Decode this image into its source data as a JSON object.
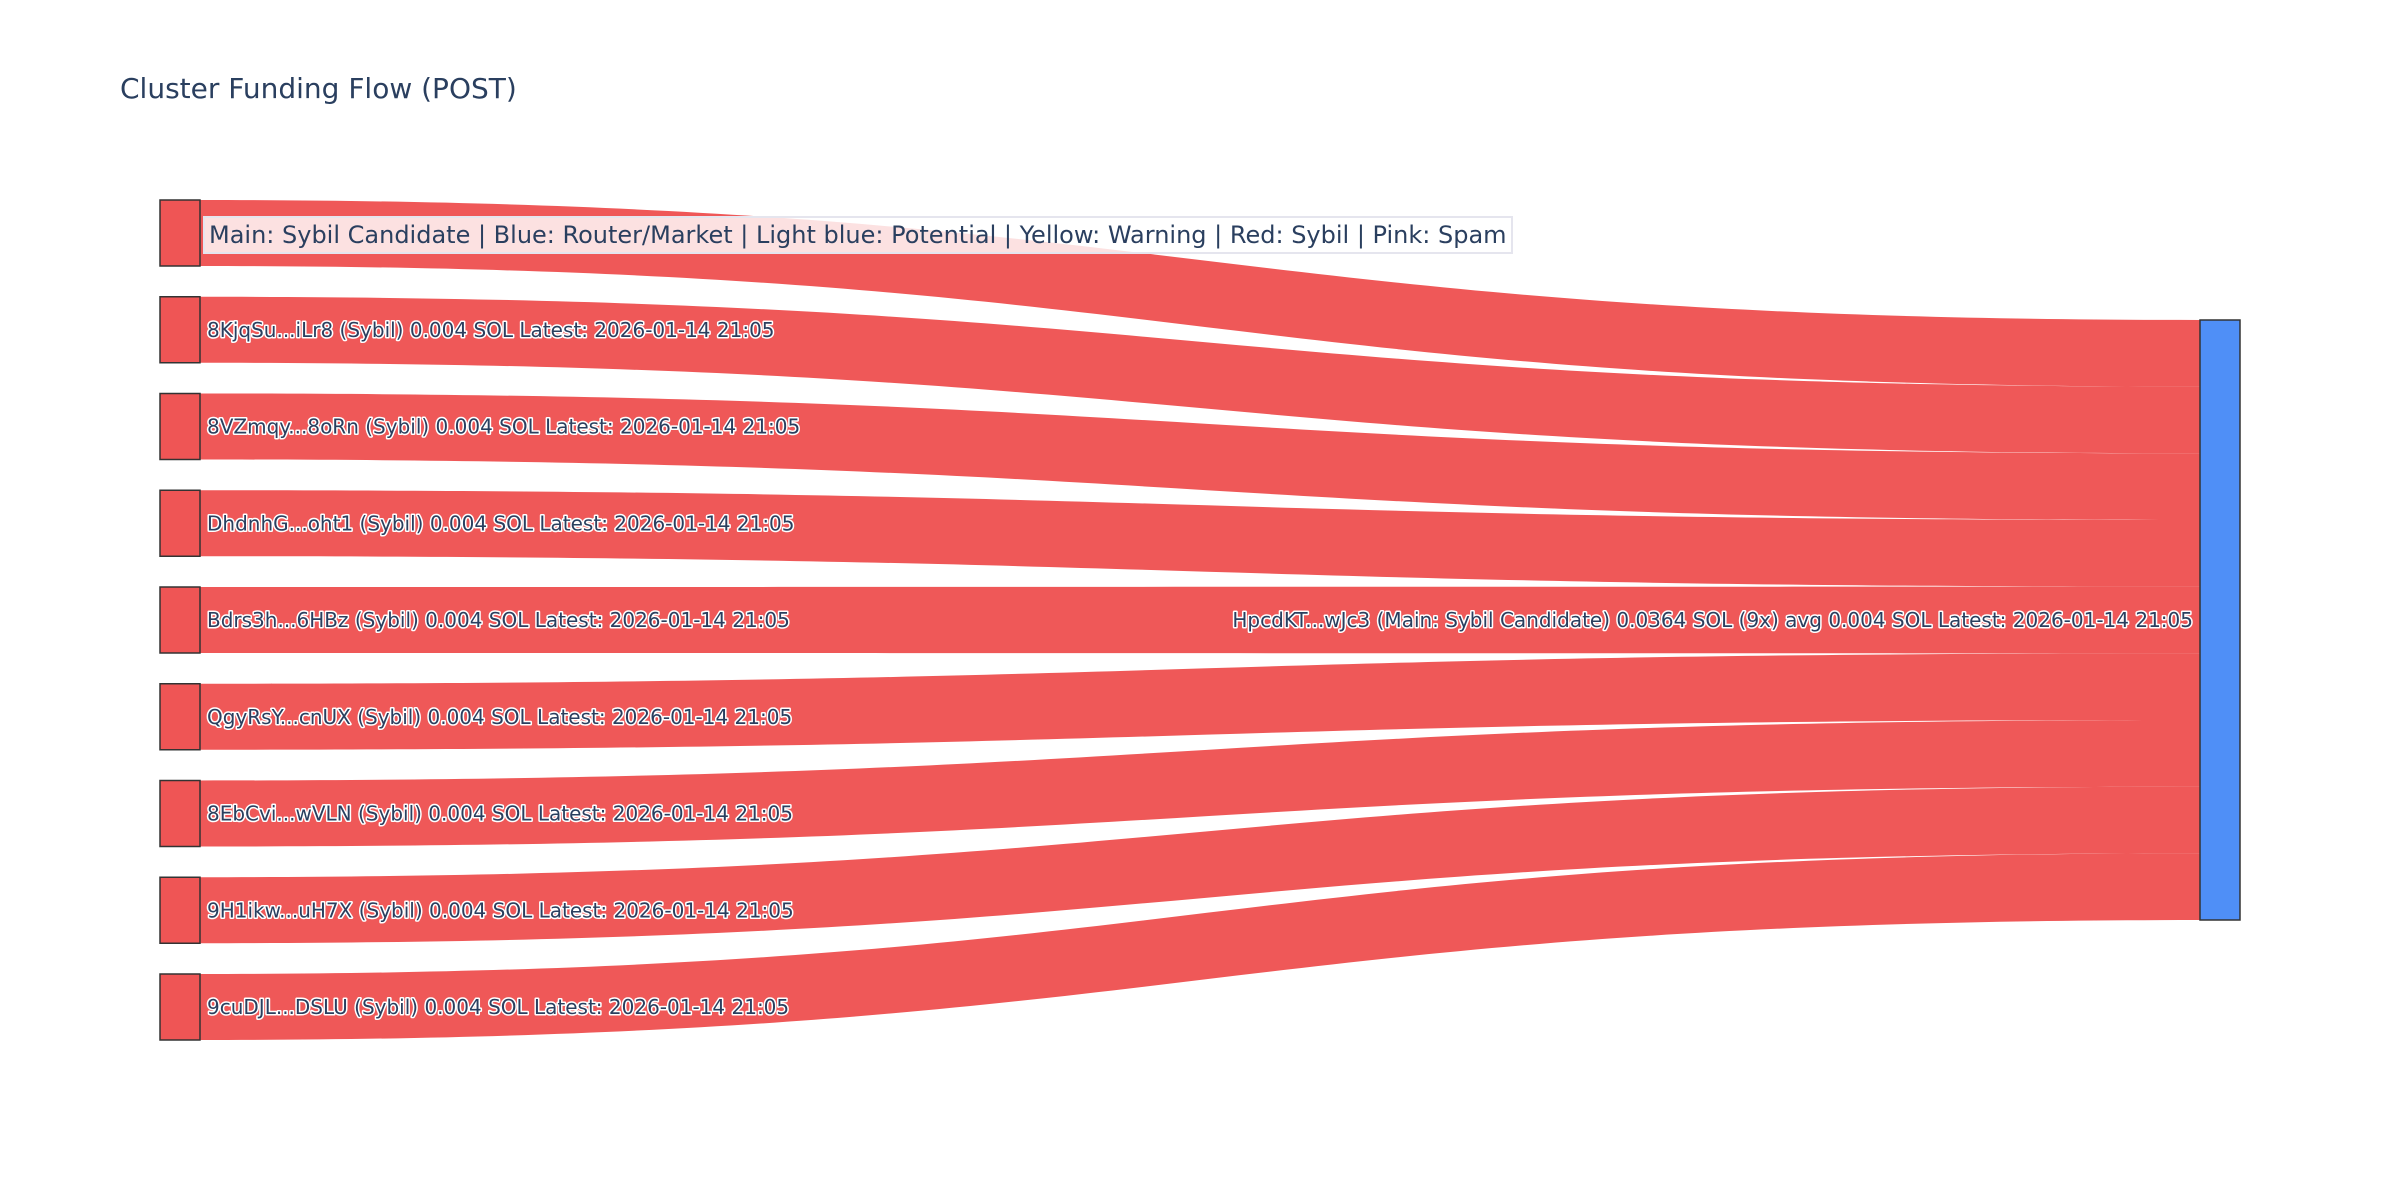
{
  "chart_data": {
    "type": "sankey",
    "title": "Cluster Funding Flow (POST)",
    "legend_text": "Main: Sybil Candidate  | Blue: Router/Market | Light blue: Potential | Yellow: Warning | Red: Sybil | Pink: Spam",
    "colors": {
      "sybil": "#ef5555",
      "main": "#4f8ff7",
      "node_border": "#333333"
    },
    "sources": [
      {
        "label": "",
        "value": 0.004,
        "category": "Sybil"
      },
      {
        "label": "8KjqSu...iLr8 (Sybil) 0.004 SOL Latest: 2026-01-14 21:05",
        "value": 0.004,
        "category": "Sybil"
      },
      {
        "label": "8VZmqy...8oRn (Sybil) 0.004 SOL Latest: 2026-01-14 21:05",
        "value": 0.004,
        "category": "Sybil"
      },
      {
        "label": "DhdnhG...oht1 (Sybil) 0.004 SOL Latest: 2026-01-14 21:05",
        "value": 0.004,
        "category": "Sybil"
      },
      {
        "label": "Bdrs3h...6HBz (Sybil) 0.004 SOL Latest: 2026-01-14 21:05",
        "value": 0.004,
        "category": "Sybil"
      },
      {
        "label": "QgyRsY...cnUX (Sybil) 0.004 SOL Latest: 2026-01-14 21:05",
        "value": 0.004,
        "category": "Sybil"
      },
      {
        "label": "8EbCvi...wVLN (Sybil) 0.004 SOL Latest: 2026-01-14 21:05",
        "value": 0.004,
        "category": "Sybil"
      },
      {
        "label": "9H1ikw...uH7X (Sybil) 0.004 SOL Latest: 2026-01-14 21:05",
        "value": 0.004,
        "category": "Sybil"
      },
      {
        "label": "9cuDJL...DSLU (Sybil) 0.004 SOL Latest: 2026-01-14 21:05",
        "value": 0.004,
        "category": "Sybil"
      }
    ],
    "target": {
      "label": "HpcdKT...wJc3 (Main: Sybil Candidate) 0.0364 SOL (9x) avg 0.004 SOL Latest: 2026-01-14 21:05",
      "value": 0.0364,
      "category": "Main: Sybil Candidate"
    }
  }
}
